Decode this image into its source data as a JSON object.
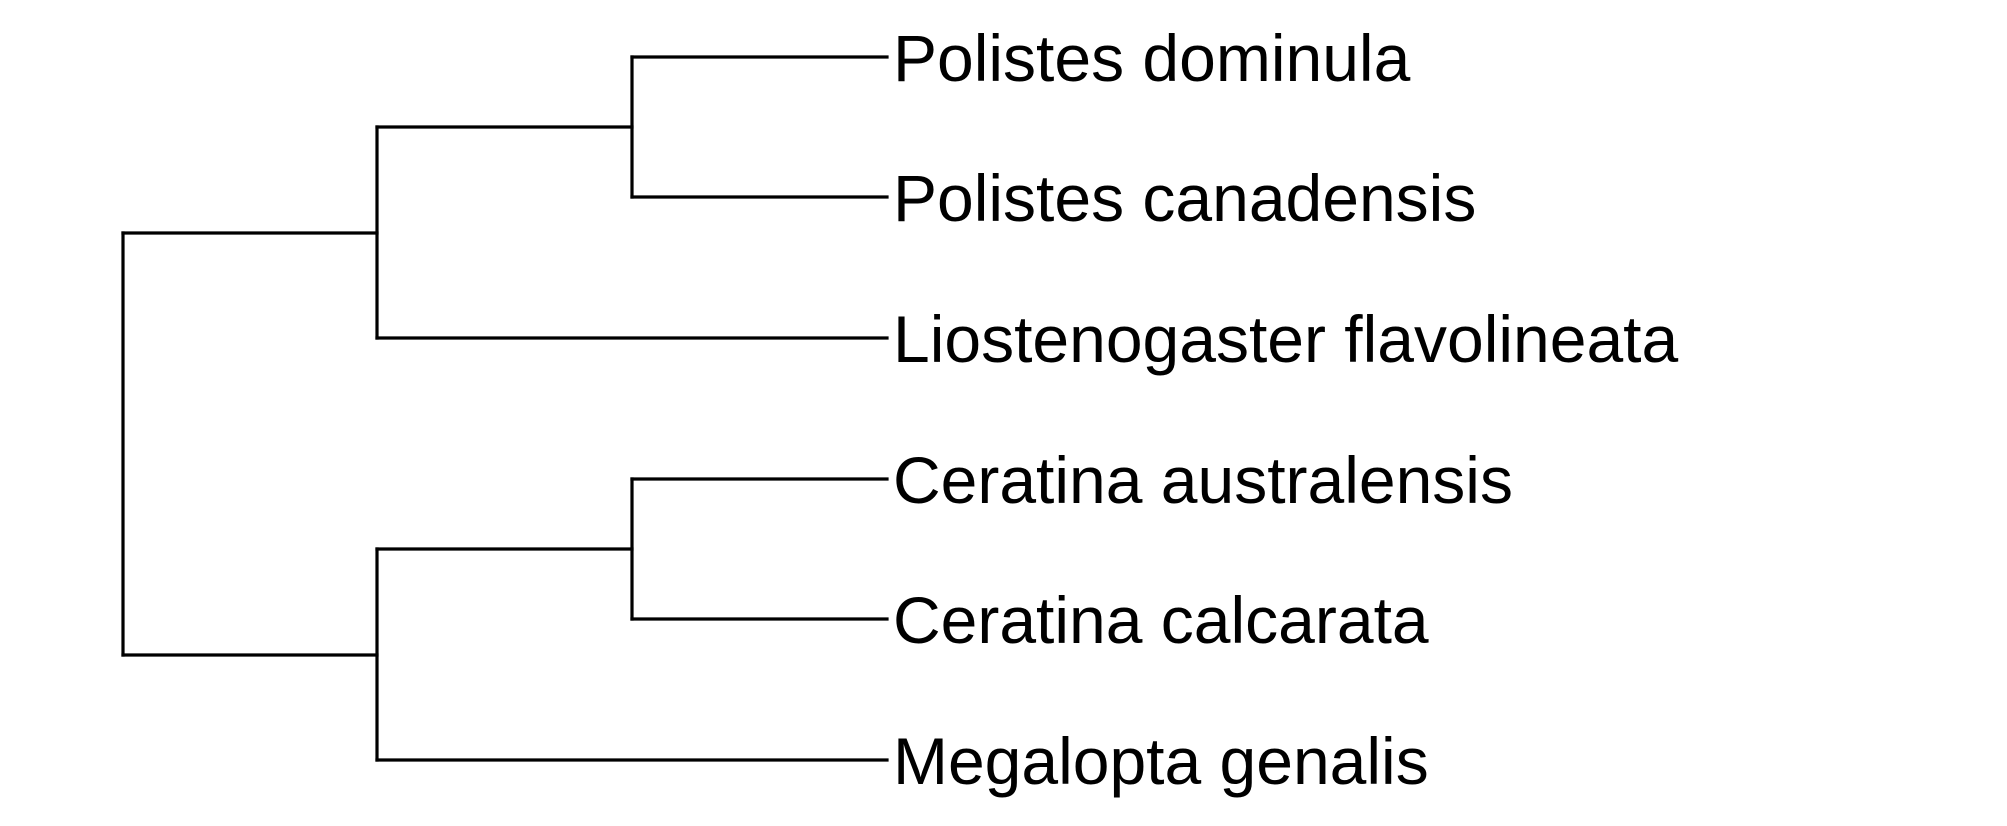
{
  "tree": {
    "taxa": [
      "Polistes dominula",
      "Polistes canadensis",
      "Liostenogaster flavolineata",
      "Ceratina australensis",
      "Ceratina calcarata",
      "Megalopta genalis"
    ],
    "topology": [
      [
        [
          "Polistes dominula",
          "Polistes canadensis"
        ],
        "Liostenogaster flavolineata"
      ],
      [
        [
          "Ceratina australensis",
          "Ceratina calcarata"
        ],
        "Megalopta genalis"
      ]
    ],
    "line_color": "#000000"
  }
}
